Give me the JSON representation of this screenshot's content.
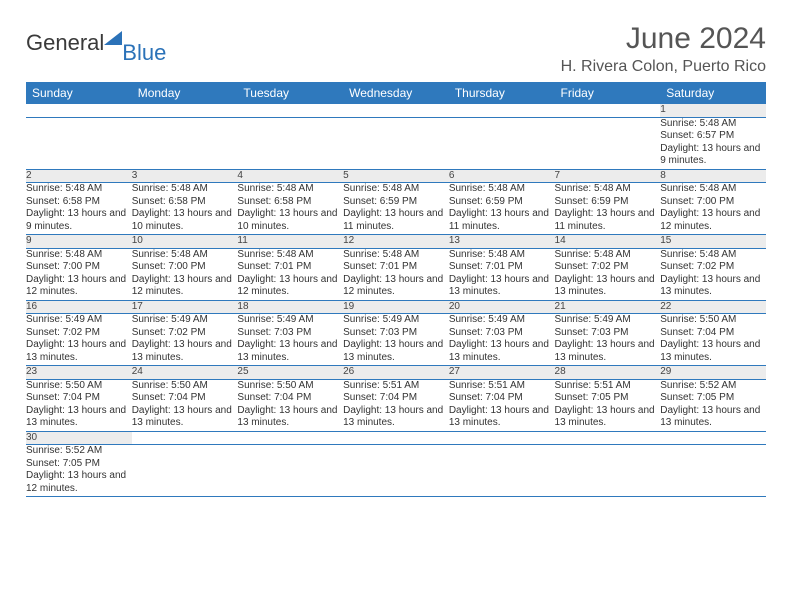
{
  "brand": {
    "part1": "General",
    "part2": "Blue"
  },
  "title": "June 2024",
  "location": "H. Rivera Colon, Puerto Rico",
  "colors": {
    "header_bg": "#2f79bd",
    "header_fg": "#ffffff",
    "daynum_bg": "#ececec",
    "rule": "#2f79bd",
    "text": "#333333",
    "brand_blue": "#2b72b8"
  },
  "dayHeaders": [
    "Sunday",
    "Monday",
    "Tuesday",
    "Wednesday",
    "Thursday",
    "Friday",
    "Saturday"
  ],
  "weeks": [
    [
      null,
      null,
      null,
      null,
      null,
      null,
      {
        "n": "1",
        "sr": "5:48 AM",
        "ss": "6:57 PM",
        "dl": "13 hours and 9 minutes."
      }
    ],
    [
      {
        "n": "2",
        "sr": "5:48 AM",
        "ss": "6:58 PM",
        "dl": "13 hours and 9 minutes."
      },
      {
        "n": "3",
        "sr": "5:48 AM",
        "ss": "6:58 PM",
        "dl": "13 hours and 10 minutes."
      },
      {
        "n": "4",
        "sr": "5:48 AM",
        "ss": "6:58 PM",
        "dl": "13 hours and 10 minutes."
      },
      {
        "n": "5",
        "sr": "5:48 AM",
        "ss": "6:59 PM",
        "dl": "13 hours and 11 minutes."
      },
      {
        "n": "6",
        "sr": "5:48 AM",
        "ss": "6:59 PM",
        "dl": "13 hours and 11 minutes."
      },
      {
        "n": "7",
        "sr": "5:48 AM",
        "ss": "6:59 PM",
        "dl": "13 hours and 11 minutes."
      },
      {
        "n": "8",
        "sr": "5:48 AM",
        "ss": "7:00 PM",
        "dl": "13 hours and 12 minutes."
      }
    ],
    [
      {
        "n": "9",
        "sr": "5:48 AM",
        "ss": "7:00 PM",
        "dl": "13 hours and 12 minutes."
      },
      {
        "n": "10",
        "sr": "5:48 AM",
        "ss": "7:00 PM",
        "dl": "13 hours and 12 minutes."
      },
      {
        "n": "11",
        "sr": "5:48 AM",
        "ss": "7:01 PM",
        "dl": "13 hours and 12 minutes."
      },
      {
        "n": "12",
        "sr": "5:48 AM",
        "ss": "7:01 PM",
        "dl": "13 hours and 12 minutes."
      },
      {
        "n": "13",
        "sr": "5:48 AM",
        "ss": "7:01 PM",
        "dl": "13 hours and 13 minutes."
      },
      {
        "n": "14",
        "sr": "5:48 AM",
        "ss": "7:02 PM",
        "dl": "13 hours and 13 minutes."
      },
      {
        "n": "15",
        "sr": "5:48 AM",
        "ss": "7:02 PM",
        "dl": "13 hours and 13 minutes."
      }
    ],
    [
      {
        "n": "16",
        "sr": "5:49 AM",
        "ss": "7:02 PM",
        "dl": "13 hours and 13 minutes."
      },
      {
        "n": "17",
        "sr": "5:49 AM",
        "ss": "7:02 PM",
        "dl": "13 hours and 13 minutes."
      },
      {
        "n": "18",
        "sr": "5:49 AM",
        "ss": "7:03 PM",
        "dl": "13 hours and 13 minutes."
      },
      {
        "n": "19",
        "sr": "5:49 AM",
        "ss": "7:03 PM",
        "dl": "13 hours and 13 minutes."
      },
      {
        "n": "20",
        "sr": "5:49 AM",
        "ss": "7:03 PM",
        "dl": "13 hours and 13 minutes."
      },
      {
        "n": "21",
        "sr": "5:49 AM",
        "ss": "7:03 PM",
        "dl": "13 hours and 13 minutes."
      },
      {
        "n": "22",
        "sr": "5:50 AM",
        "ss": "7:04 PM",
        "dl": "13 hours and 13 minutes."
      }
    ],
    [
      {
        "n": "23",
        "sr": "5:50 AM",
        "ss": "7:04 PM",
        "dl": "13 hours and 13 minutes."
      },
      {
        "n": "24",
        "sr": "5:50 AM",
        "ss": "7:04 PM",
        "dl": "13 hours and 13 minutes."
      },
      {
        "n": "25",
        "sr": "5:50 AM",
        "ss": "7:04 PM",
        "dl": "13 hours and 13 minutes."
      },
      {
        "n": "26",
        "sr": "5:51 AM",
        "ss": "7:04 PM",
        "dl": "13 hours and 13 minutes."
      },
      {
        "n": "27",
        "sr": "5:51 AM",
        "ss": "7:04 PM",
        "dl": "13 hours and 13 minutes."
      },
      {
        "n": "28",
        "sr": "5:51 AM",
        "ss": "7:05 PM",
        "dl": "13 hours and 13 minutes."
      },
      {
        "n": "29",
        "sr": "5:52 AM",
        "ss": "7:05 PM",
        "dl": "13 hours and 13 minutes."
      }
    ],
    [
      {
        "n": "30",
        "sr": "5:52 AM",
        "ss": "7:05 PM",
        "dl": "13 hours and 12 minutes."
      },
      null,
      null,
      null,
      null,
      null,
      null
    ]
  ],
  "labels": {
    "sunrise": "Sunrise:",
    "sunset": "Sunset:",
    "daylight": "Daylight:"
  }
}
